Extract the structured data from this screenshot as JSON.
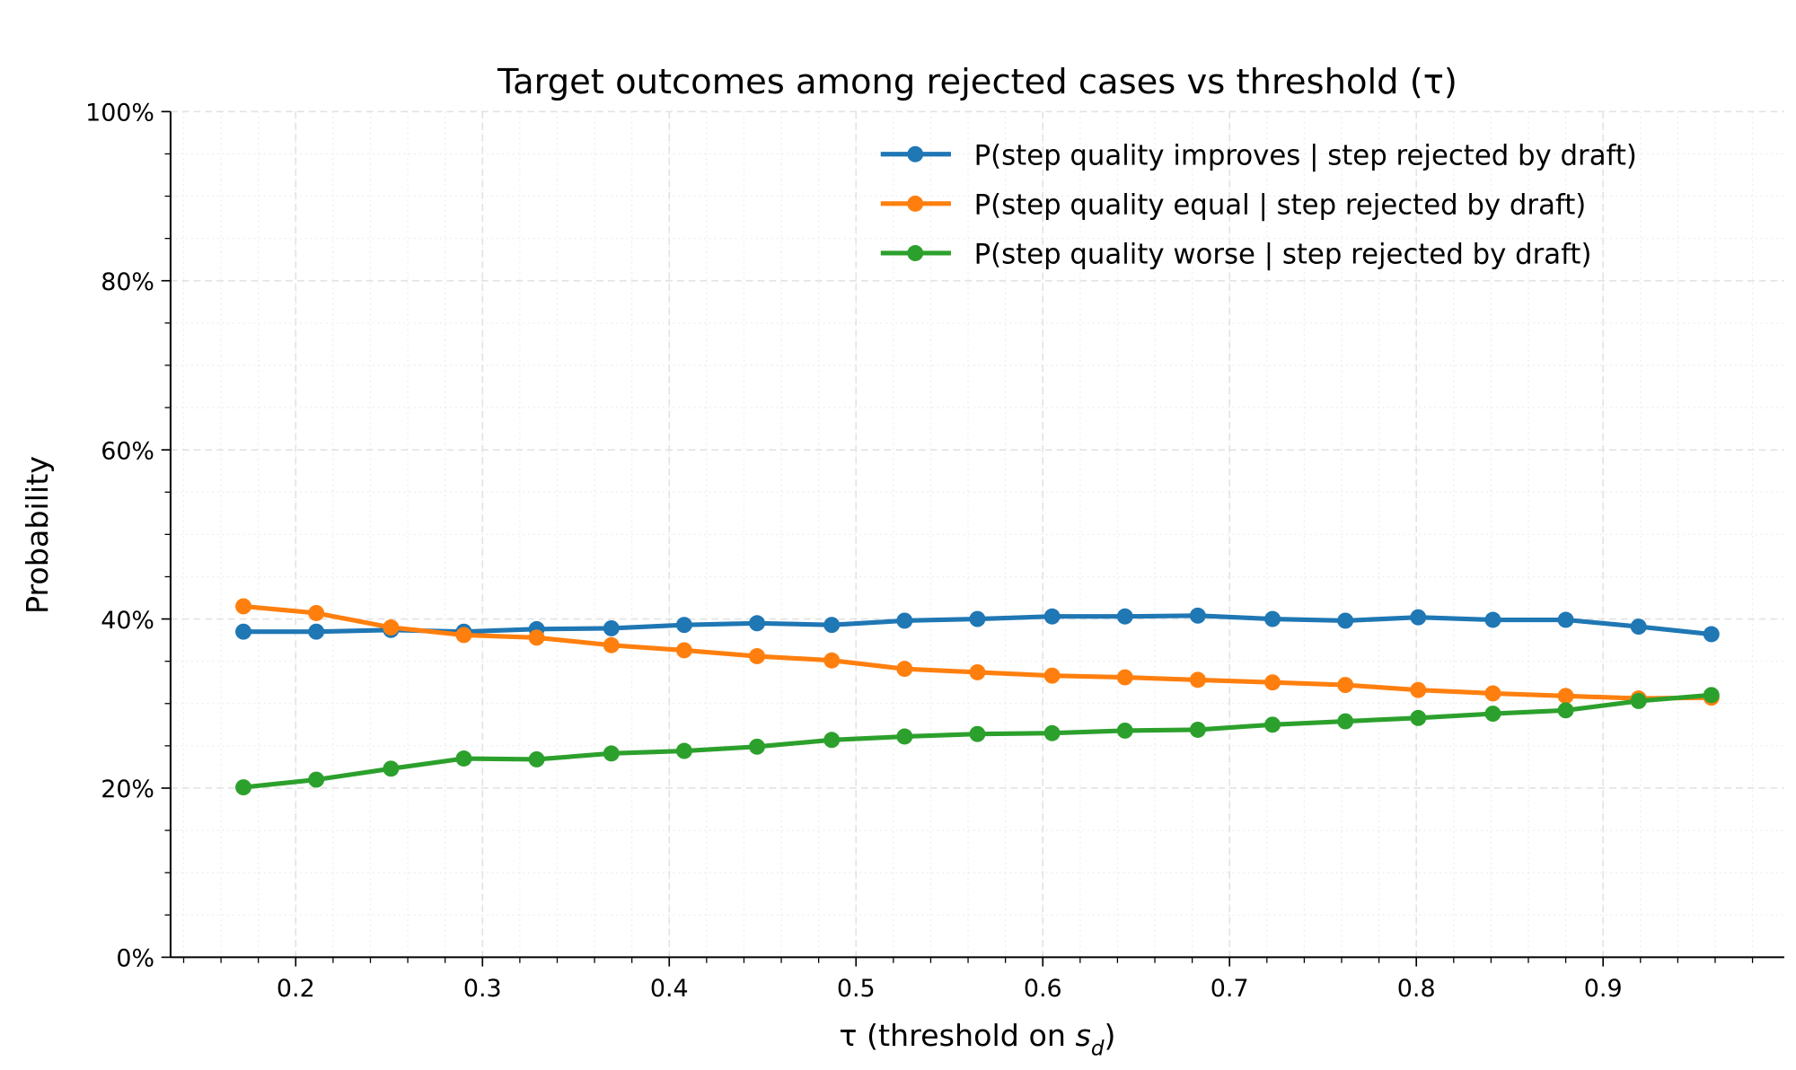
{
  "chart_data": {
    "type": "line",
    "title": "Target outcomes among rejected cases vs threshold (τ)",
    "xlabel": "τ (threshold on s_d)",
    "xlabel_main": "τ (threshold on ",
    "xlabel_var": "s",
    "xlabel_sub": "d",
    "xlabel_end": ")",
    "ylabel": "Probability",
    "xlim": [
      0.133,
      0.997
    ],
    "ylim": [
      0,
      100
    ],
    "xticks": [
      0.2,
      0.3,
      0.4,
      0.5,
      0.6,
      0.7,
      0.8,
      0.9
    ],
    "xtick_labels": [
      "0.2",
      "0.3",
      "0.4",
      "0.5",
      "0.6",
      "0.7",
      "0.8",
      "0.9"
    ],
    "yticks": [
      0,
      20,
      40,
      60,
      80,
      100
    ],
    "ytick_labels": [
      "0%",
      "20%",
      "40%",
      "60%",
      "80%",
      "100%"
    ],
    "grid": true,
    "legend_position": "top-right",
    "x": [
      0.172,
      0.211,
      0.251,
      0.29,
      0.329,
      0.369,
      0.408,
      0.447,
      0.487,
      0.526,
      0.565,
      0.605,
      0.644,
      0.683,
      0.723,
      0.762,
      0.801,
      0.841,
      0.88,
      0.919,
      0.958
    ],
    "series": [
      {
        "name": "P(step quality improves | step rejected by draft)",
        "color": "#1f77b4",
        "values": [
          38.5,
          38.5,
          38.7,
          38.5,
          38.8,
          38.9,
          39.3,
          39.5,
          39.3,
          39.8,
          40.0,
          40.3,
          40.3,
          40.4,
          40.0,
          39.8,
          40.2,
          39.9,
          39.9,
          39.1,
          38.2
        ]
      },
      {
        "name": "P(step quality equal | step rejected by draft)",
        "color": "#ff7f0e",
        "values": [
          41.5,
          40.7,
          39.0,
          38.1,
          37.8,
          36.9,
          36.3,
          35.6,
          35.1,
          34.1,
          33.7,
          33.3,
          33.1,
          32.8,
          32.5,
          32.2,
          31.6,
          31.2,
          30.9,
          30.6,
          30.7
        ]
      },
      {
        "name": "P(step quality worse | step rejected by draft)",
        "color": "#2ca02c",
        "values": [
          20.1,
          21.0,
          22.3,
          23.5,
          23.4,
          24.1,
          24.4,
          24.9,
          25.7,
          26.1,
          26.4,
          26.5,
          26.8,
          26.9,
          27.5,
          27.9,
          28.3,
          28.8,
          29.2,
          30.3,
          31.0
        ]
      }
    ]
  }
}
